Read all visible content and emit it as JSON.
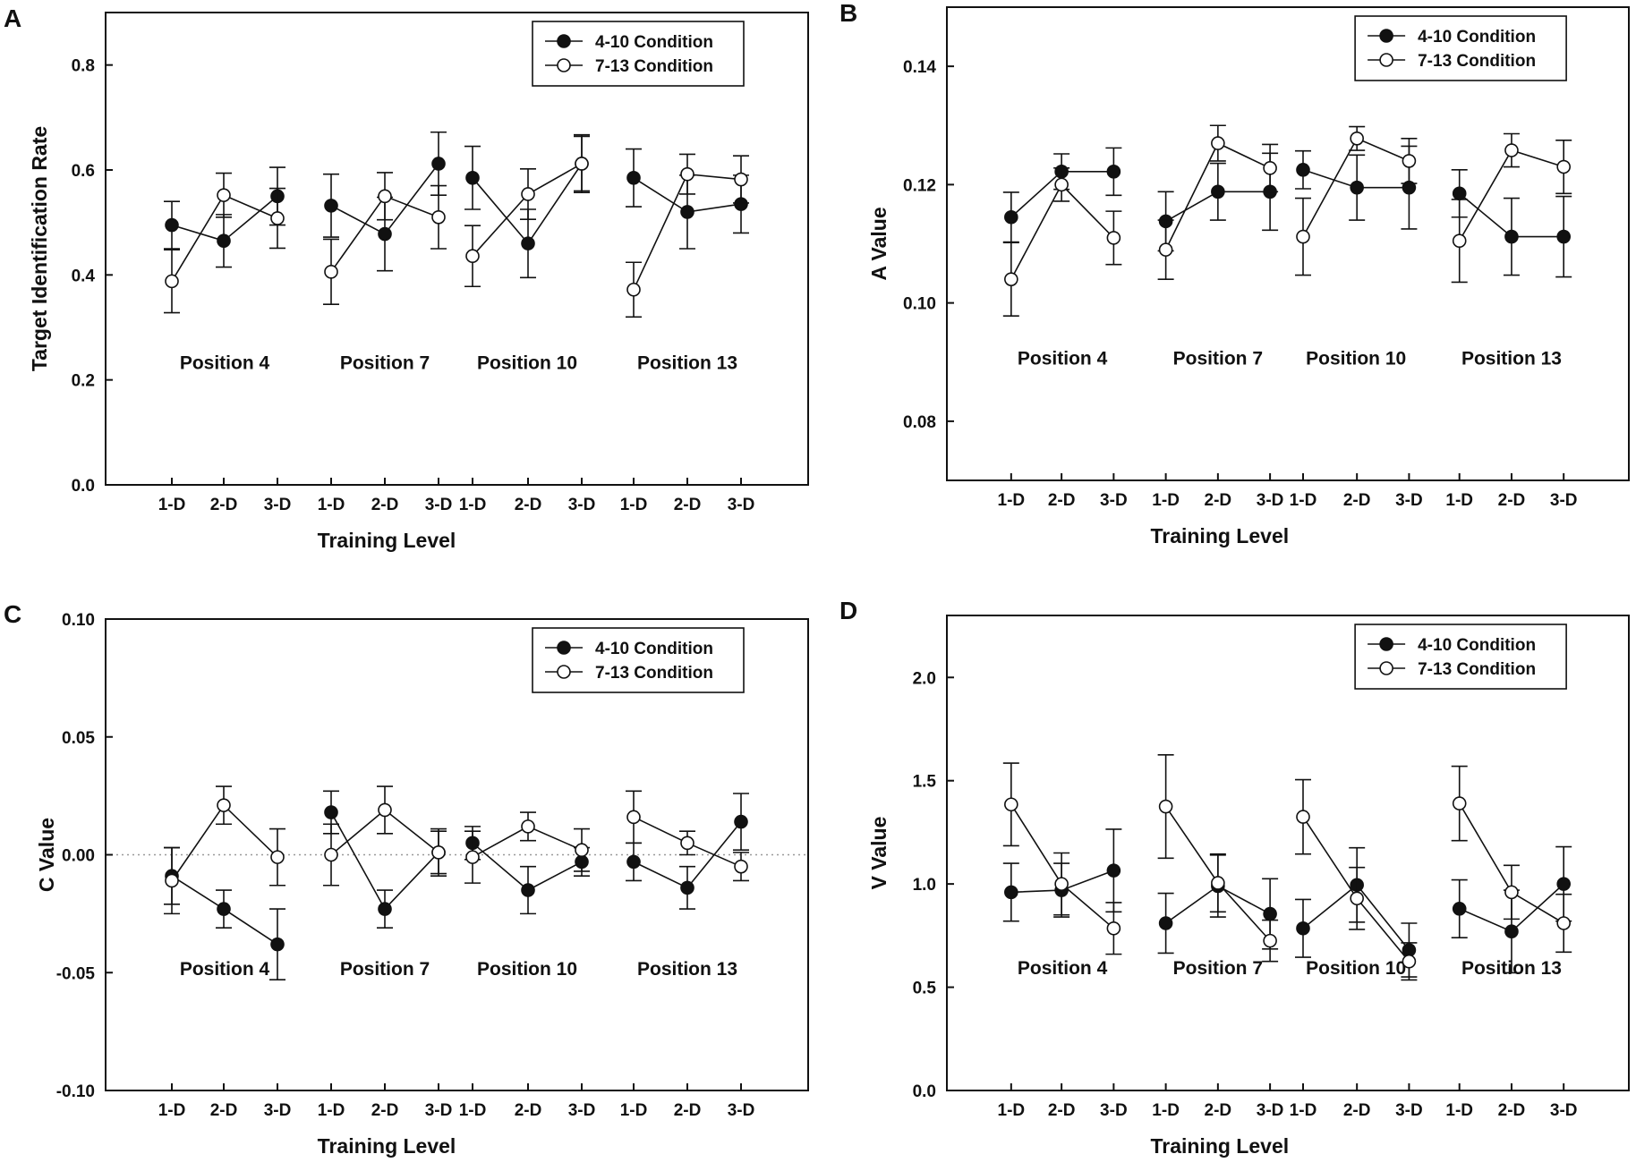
{
  "chart_data": [
    {
      "panel": "A",
      "type": "line",
      "xlabel": "Training Level",
      "ylabel": "Target Identification Rate",
      "ylim": [
        0.0,
        0.9
      ],
      "yticks": [
        0.0,
        0.2,
        0.4,
        0.6,
        0.8
      ],
      "ytick_labels": [
        "0.0",
        "0.2",
        "0.4",
        "0.6",
        "0.8"
      ],
      "categories": [
        "1-D",
        "2-D",
        "3-D",
        "1-D",
        "2-D",
        "3-D",
        "1-D",
        "2-D",
        "3-D",
        "1-D",
        "2-D",
        "3-D"
      ],
      "groups": [
        "Position 4",
        "Position 7",
        "Position 10",
        "Position 13"
      ],
      "legend": "top-right",
      "series": [
        {
          "name": "4-10 Condition",
          "marker": "filled",
          "values": [
            0.495,
            0.465,
            0.55,
            0.532,
            0.478,
            0.612,
            0.585,
            0.46,
            0.612,
            0.585,
            0.52,
            0.535
          ],
          "errors": [
            0.045,
            0.05,
            0.055,
            0.06,
            0.07,
            0.06,
            0.06,
            0.065,
            0.055,
            0.055,
            0.07,
            0.055
          ]
        },
        {
          "name": "7-13 Condition",
          "marker": "open",
          "values": [
            0.388,
            0.552,
            0.508,
            0.406,
            0.55,
            0.51,
            0.436,
            0.554,
            0.612,
            0.372,
            0.592,
            0.582
          ],
          "errors": [
            0.06,
            0.042,
            0.057,
            0.062,
            0.045,
            0.06,
            0.058,
            0.048,
            0.052,
            0.052,
            0.038,
            0.045
          ]
        }
      ]
    },
    {
      "panel": "B",
      "type": "line",
      "xlabel": "Training Level",
      "ylabel": "A Value",
      "ylim": [
        0.07,
        0.15
      ],
      "yticks": [
        0.08,
        0.1,
        0.12,
        0.14
      ],
      "ytick_labels": [
        "0.08",
        "0.10",
        "0.12",
        "0.14"
      ],
      "categories": [
        "1-D",
        "2-D",
        "3-D",
        "1-D",
        "2-D",
        "3-D",
        "1-D",
        "2-D",
        "3-D",
        "1-D",
        "2-D",
        "3-D"
      ],
      "groups": [
        "Position 4",
        "Position 7",
        "Position 10",
        "Position 13"
      ],
      "legend": "top-right",
      "series": [
        {
          "name": "4-10 Condition",
          "marker": "filled",
          "values": [
            0.1145,
            0.1222,
            0.1222,
            0.1138,
            0.1188,
            0.1188,
            0.1225,
            0.1195,
            0.1195,
            0.1185,
            0.1112,
            0.1112
          ],
          "errors": [
            0.0042,
            0.003,
            0.004,
            0.005,
            0.0048,
            0.0065,
            0.0032,
            0.0055,
            0.007,
            0.004,
            0.0065,
            0.0068
          ]
        },
        {
          "name": "7-13 Condition",
          "marker": "open",
          "values": [
            0.104,
            0.12,
            0.111,
            0.109,
            0.127,
            0.1228,
            0.1112,
            0.1278,
            0.124,
            0.1105,
            0.1258,
            0.123
          ],
          "errors": [
            0.0062,
            0.0028,
            0.0045,
            0.005,
            0.003,
            0.004,
            0.0065,
            0.002,
            0.0038,
            0.007,
            0.0028,
            0.0045
          ]
        }
      ]
    },
    {
      "panel": "C",
      "type": "line",
      "xlabel": "Training Level",
      "ylabel": "C Value",
      "ylim": [
        -0.1,
        0.1
      ],
      "yticks": [
        -0.1,
        -0.05,
        0.0,
        0.05,
        0.1
      ],
      "ytick_labels": [
        "-0.10",
        "-0.05",
        "0.00",
        "0.05",
        "0.10"
      ],
      "reference_line": 0.0,
      "categories": [
        "1-D",
        "2-D",
        "3-D",
        "1-D",
        "2-D",
        "3-D",
        "1-D",
        "2-D",
        "3-D",
        "1-D",
        "2-D",
        "3-D"
      ],
      "groups": [
        "Position 4",
        "Position 7",
        "Position 10",
        "Position 13"
      ],
      "legend": "top-right",
      "series": [
        {
          "name": "4-10 Condition",
          "marker": "filled",
          "values": [
            -0.009,
            -0.023,
            -0.038,
            0.018,
            -0.023,
            0.001,
            0.005,
            -0.015,
            -0.003,
            -0.003,
            -0.014,
            0.014
          ],
          "errors": [
            0.012,
            0.008,
            0.015,
            0.009,
            0.008,
            0.01,
            0.007,
            0.01,
            0.006,
            0.008,
            0.009,
            0.012
          ]
        },
        {
          "name": "7-13 Condition",
          "marker": "open",
          "values": [
            -0.011,
            0.021,
            -0.001,
            0.0,
            0.019,
            0.001,
            -0.001,
            0.012,
            0.002,
            0.016,
            0.005,
            -0.005
          ],
          "errors": [
            0.014,
            0.008,
            0.012,
            0.013,
            0.01,
            0.009,
            0.011,
            0.006,
            0.009,
            0.011,
            0.005,
            0.006
          ]
        }
      ]
    },
    {
      "panel": "D",
      "type": "line",
      "xlabel": "Training Level",
      "ylabel": "V Value",
      "ylim": [
        0.0,
        2.3
      ],
      "yticks": [
        0.0,
        0.5,
        1.0,
        1.5,
        2.0
      ],
      "ytick_labels": [
        "0.0",
        "0.5",
        "1.0",
        "1.5",
        "2.0"
      ],
      "categories": [
        "1-D",
        "2-D",
        "3-D",
        "1-D",
        "2-D",
        "3-D",
        "1-D",
        "2-D",
        "3-D",
        "1-D",
        "2-D",
        "3-D"
      ],
      "groups": [
        "Position 4",
        "Position 7",
        "Position 10",
        "Position 13"
      ],
      "legend": "top-right",
      "series": [
        {
          "name": "4-10 Condition",
          "marker": "filled",
          "values": [
            0.96,
            0.97,
            1.065,
            0.81,
            0.99,
            0.855,
            0.785,
            0.995,
            0.68,
            0.88,
            0.77,
            1.0
          ],
          "errors": [
            0.14,
            0.13,
            0.2,
            0.145,
            0.15,
            0.17,
            0.14,
            0.18,
            0.13,
            0.14,
            0.2,
            0.18
          ]
        },
        {
          "name": "7-13 Condition",
          "marker": "open",
          "values": [
            1.385,
            1.0,
            0.785,
            1.375,
            1.005,
            0.725,
            1.325,
            0.93,
            0.625,
            1.39,
            0.96,
            0.81
          ],
          "errors": [
            0.2,
            0.15,
            0.125,
            0.25,
            0.14,
            0.1,
            0.18,
            0.15,
            0.09,
            0.18,
            0.13,
            0.14
          ]
        }
      ]
    }
  ]
}
